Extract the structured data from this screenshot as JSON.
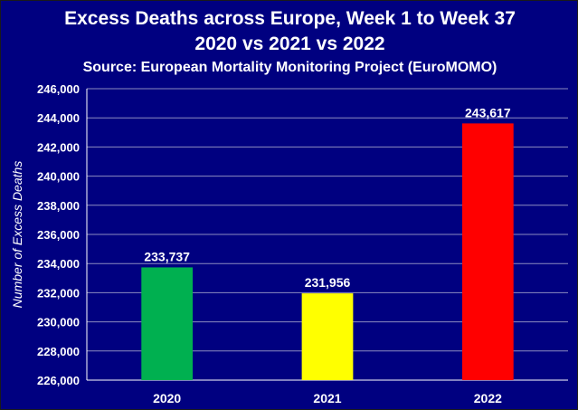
{
  "chart_data": {
    "type": "bar",
    "title": "Excess Deaths across Europe, Week 1 to Week 37",
    "subtitle_line": "2020 vs 2021 vs 2022",
    "source": "Source: European Mortality Monitoring Project (EuroMOMO)",
    "xlabel": "",
    "ylabel": "Number of Excess Deaths",
    "categories": [
      "2020",
      "2021",
      "2022"
    ],
    "values": [
      233737,
      231956,
      243617
    ],
    "data_labels": [
      "233,737",
      "231,956",
      "243,617"
    ],
    "bar_colors": [
      "#00B050",
      "#FFFF00",
      "#FF0000"
    ],
    "ylim": [
      226000,
      246000
    ],
    "yticks": [
      226000,
      228000,
      230000,
      232000,
      234000,
      236000,
      238000,
      240000,
      242000,
      244000,
      246000
    ],
    "ytick_labels": [
      "226,000",
      "228,000",
      "230,000",
      "232,000",
      "234,000",
      "236,000",
      "238,000",
      "240,000",
      "242,000",
      "244,000",
      "246,000"
    ],
    "grid": true,
    "legend": "none"
  },
  "colors": {
    "background": "#000080",
    "text": "#FFFFFF",
    "gridline": "#8C8CC0"
  }
}
